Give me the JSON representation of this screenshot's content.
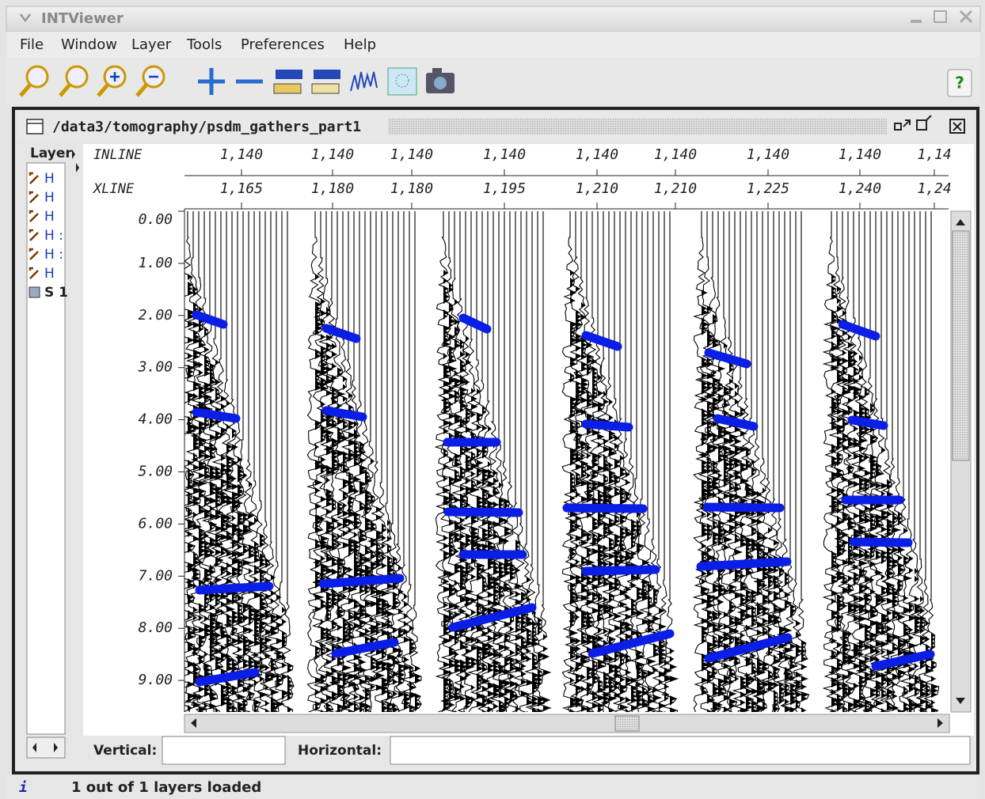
{
  "window": {
    "title": "INTViewer"
  },
  "menu": [
    "File",
    "Window",
    "Layer",
    "Tools",
    "Preferences",
    "Help"
  ],
  "toolbar": {
    "help": "?"
  },
  "viewer": {
    "title": "/data3/tomography/psdm_gathers_part1",
    "layer_panel": {
      "title": "Layer",
      "items": [
        "H",
        "H",
        "H",
        "H :",
        "H :",
        "H",
        "S 1"
      ]
    },
    "header": {
      "labels": [
        "INLINE",
        "XLINE"
      ],
      "inline": [
        "1,140",
        "1,140",
        "1,140",
        "1,140",
        "1,140",
        "1,140",
        "1,140",
        "1,140",
        "1,14"
      ],
      "xline": [
        "1,165",
        "1,180",
        "1,180",
        "1,195",
        "1,210",
        "1,210",
        "1,225",
        "1,240",
        "1,24"
      ]
    },
    "y_ticks": [
      "0.00",
      "1.00",
      "2.00",
      "3.00",
      "4.00",
      "5.00",
      "6.00",
      "7.00",
      "8.00",
      "9.00"
    ],
    "fields": {
      "vertical": "Vertical:",
      "horizontal": "Horizontal:"
    }
  },
  "status": "1 out of 1 layers loaded"
}
